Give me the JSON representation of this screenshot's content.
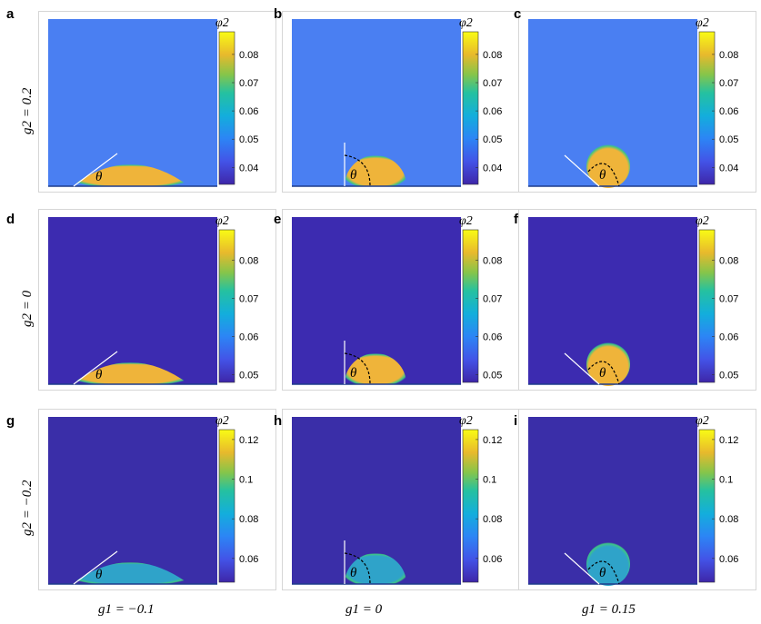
{
  "colorbar_label": "φ2",
  "theta_label": "θ",
  "row_labels": [
    "g2 = 0.2",
    "g2 = 0",
    "g2 = −0.2"
  ],
  "column_labels": [
    "g1 = −0.1",
    "g1 = 0",
    "g1 = 0.15"
  ],
  "colors": {
    "bg_row1": "#4a7ff2",
    "bg_row2": "#3c2bb0",
    "bg_row3": "#3a2ea8",
    "drop_row12": "#efb43a",
    "drop_row3": "#2fa3c9",
    "rim": "#3dc585"
  },
  "chart_data": [
    {
      "type": "heatmap",
      "panel": "a",
      "g1": -0.1,
      "g2": 0.2,
      "droplet": "spread",
      "contact_line": "tangent",
      "colorbar": {
        "label": "φ2",
        "range": [
          0.034,
          0.088
        ],
        "ticks": [
          0.04,
          0.05,
          0.06,
          0.07,
          0.08
        ],
        "tick_labels": [
          "0.04",
          "0.05",
          "0.06",
          "0.07",
          "0.08"
        ]
      }
    },
    {
      "type": "heatmap",
      "panel": "b",
      "g1": 0,
      "g2": 0.2,
      "droplet": "hemisphere",
      "contact_line": "vertical",
      "colorbar": {
        "label": "φ2",
        "range": [
          0.034,
          0.088
        ],
        "ticks": [
          0.04,
          0.05,
          0.06,
          0.07,
          0.08
        ],
        "tick_labels": [
          "0.04",
          "0.05",
          "0.06",
          "0.07",
          "0.08"
        ]
      }
    },
    {
      "type": "heatmap",
      "panel": "c",
      "g1": 0.15,
      "g2": 0.2,
      "droplet": "sphere",
      "contact_line": "obtuse",
      "colorbar": {
        "label": "φ2",
        "range": [
          0.034,
          0.088
        ],
        "ticks": [
          0.04,
          0.05,
          0.06,
          0.07,
          0.08
        ],
        "tick_labels": [
          "0.04",
          "0.05",
          "0.06",
          "0.07",
          "0.08"
        ]
      }
    },
    {
      "type": "heatmap",
      "panel": "d",
      "g1": -0.1,
      "g2": 0,
      "droplet": "spread",
      "contact_line": "tangent",
      "colorbar": {
        "label": "φ2",
        "range": [
          0.048,
          0.088
        ],
        "ticks": [
          0.05,
          0.06,
          0.07,
          0.08
        ],
        "tick_labels": [
          "0.05",
          "0.06",
          "0.07",
          "0.08"
        ]
      }
    },
    {
      "type": "heatmap",
      "panel": "e",
      "g1": 0,
      "g2": 0,
      "droplet": "hemisphere",
      "contact_line": "vertical",
      "colorbar": {
        "label": "φ2",
        "range": [
          0.048,
          0.088
        ],
        "ticks": [
          0.05,
          0.06,
          0.07,
          0.08
        ],
        "tick_labels": [
          "0.05",
          "0.06",
          "0.07",
          "0.08"
        ]
      }
    },
    {
      "type": "heatmap",
      "panel": "f",
      "g1": 0.15,
      "g2": 0,
      "droplet": "sphere",
      "contact_line": "obtuse",
      "colorbar": {
        "label": "φ2",
        "range": [
          0.048,
          0.088
        ],
        "ticks": [
          0.05,
          0.06,
          0.07,
          0.08
        ],
        "tick_labels": [
          "0.05",
          "0.06",
          "0.07",
          "0.08"
        ]
      }
    },
    {
      "type": "heatmap",
      "panel": "g",
      "g1": -0.1,
      "g2": -0.2,
      "droplet": "spread",
      "contact_line": "tangent",
      "colorbar": {
        "label": "φ2",
        "range": [
          0.048,
          0.125
        ],
        "ticks": [
          0.06,
          0.08,
          0.1,
          0.12
        ],
        "tick_labels": [
          "0.06",
          "0.08",
          "0.1",
          "0.12"
        ]
      }
    },
    {
      "type": "heatmap",
      "panel": "h",
      "g1": 0,
      "g2": -0.2,
      "droplet": "hemisphere",
      "contact_line": "vertical",
      "colorbar": {
        "label": "φ2",
        "range": [
          0.048,
          0.125
        ],
        "ticks": [
          0.06,
          0.08,
          0.1,
          0.12
        ],
        "tick_labels": [
          "0.06",
          "0.08",
          "0.1",
          "0.12"
        ]
      }
    },
    {
      "type": "heatmap",
      "panel": "i",
      "g1": 0.15,
      "g2": -0.2,
      "droplet": "sphere",
      "contact_line": "obtuse",
      "colorbar": {
        "label": "φ2",
        "range": [
          0.048,
          0.125
        ],
        "ticks": [
          0.06,
          0.08,
          0.1,
          0.12
        ],
        "tick_labels": [
          "0.06",
          "0.08",
          "0.1",
          "0.12"
        ]
      }
    }
  ]
}
